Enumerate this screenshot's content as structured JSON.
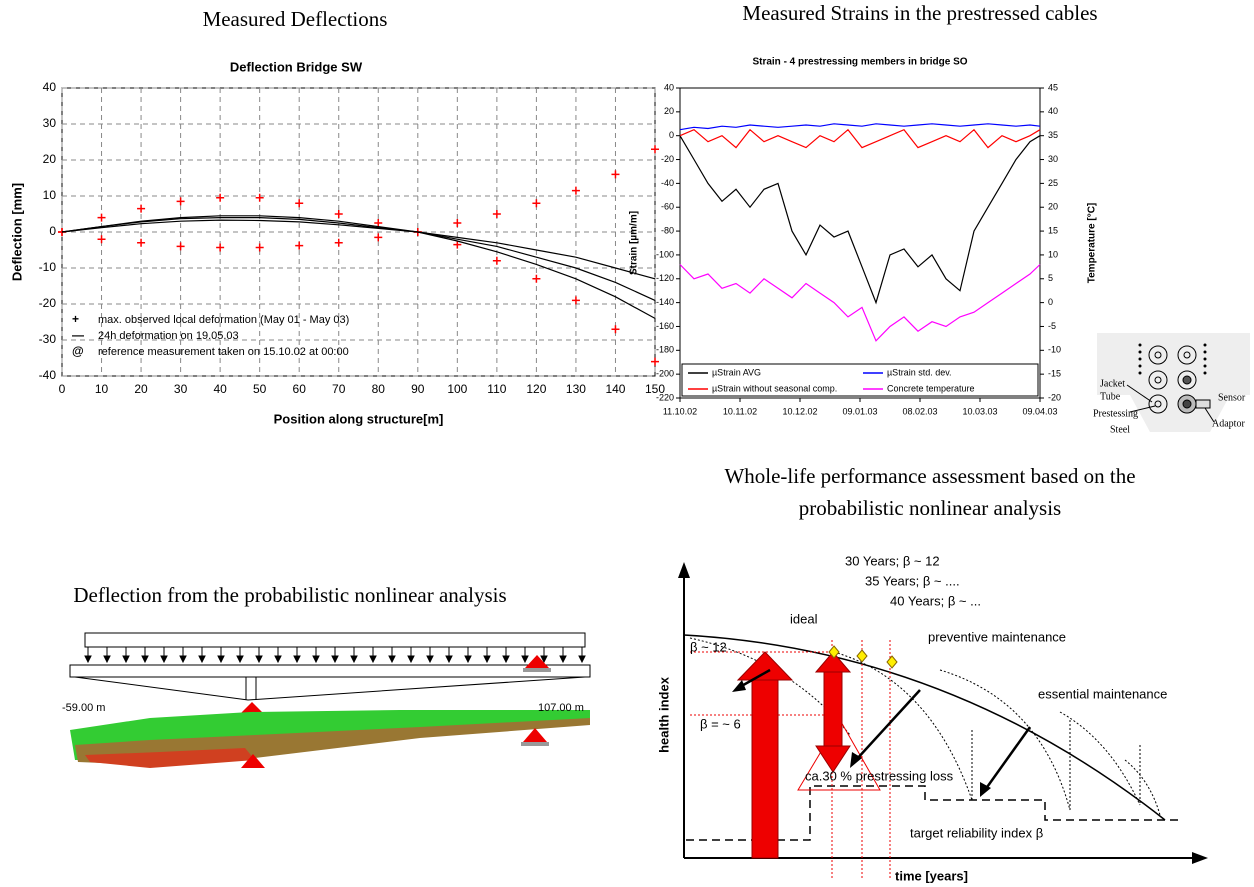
{
  "headings": {
    "deflections": "Measured Deflections",
    "strains": "Measured Strains in the prestressed cables",
    "assessment": [
      "Whole-life performance assessment based on the",
      "probabilistic nonlinear analysis"
    ],
    "analysis": "Deflection from the probabilistic nonlinear analysis"
  },
  "chart_data": [
    {
      "type": "line",
      "title": "Deflection Bridge SW",
      "x_label": "Position along structure[m]",
      "y_label": "Deflection [mm]",
      "x": [
        0,
        10,
        20,
        30,
        40,
        50,
        60,
        70,
        80,
        90,
        100,
        110,
        120,
        130,
        140,
        150
      ],
      "series": [
        {
          "color": "#ff0000",
          "marker": "+",
          "values": [
            0,
            4,
            6.5,
            8.5,
            9.5,
            9.5,
            8,
            5,
            2.5,
            0,
            2.5,
            5,
            8,
            11.5,
            16,
            23
          ]
        },
        {
          "color": "#ff0000",
          "marker": "+",
          "values": [
            0,
            -2,
            -3,
            -4,
            -4.3,
            -4.3,
            -3.8,
            -3,
            -1.5,
            0,
            -3.5,
            -8,
            -13,
            -19,
            -27,
            -36
          ]
        },
        {
          "color": "#000000",
          "values": [
            0,
            1.5,
            3,
            4,
            4.5,
            4.5,
            4,
            3,
            1.5,
            0,
            -1.5,
            -3,
            -5,
            -7,
            -10,
            -13
          ]
        },
        {
          "color": "#000000",
          "values": [
            0,
            1.5,
            2.8,
            3.7,
            4,
            4,
            3.5,
            2.5,
            1.2,
            0,
            -2,
            -4,
            -7,
            -10,
            -14,
            -19
          ]
        },
        {
          "color": "#000000",
          "values": [
            0,
            1.2,
            2.3,
            3,
            3.3,
            3.2,
            2.8,
            2,
            1,
            0,
            -2.5,
            -5.5,
            -9,
            -13,
            -18,
            -24
          ]
        }
      ],
      "legend": [
        {
          "symbol": "+",
          "color": "#ff0000",
          "label": "max. observed local deformation (May 01 - May 03)"
        },
        {
          "symbol": "—",
          "color": "#000000",
          "label": "24h deformation on 19.05.03"
        },
        {
          "symbol": "@",
          "color": "#339966",
          "label": "reference measurement taken on 15.10.02 at 00:00"
        }
      ],
      "xlim": [
        0,
        150
      ],
      "xticks": [
        0,
        10,
        20,
        30,
        40,
        50,
        60,
        70,
        80,
        90,
        100,
        110,
        120,
        130,
        140,
        150
      ],
      "ylim": [
        -40,
        40
      ],
      "yticks": [
        -40,
        -30,
        -20,
        -10,
        0,
        10,
        20,
        30,
        40
      ],
      "grid": true
    },
    {
      "type": "line",
      "title": "Strain - 4 prestressing members in bridge SO",
      "y_label": "Strain [µm/m]",
      "y2_label": "Temperature [°C]",
      "x": [
        "11.10.02",
        "18.10.02",
        "25.10.02",
        "01.11.02",
        "08.11.02",
        "15.11.02",
        "22.11.02",
        "29.11.02",
        "06.12.02",
        "13.12.02",
        "20.12.02",
        "27.12.02",
        "03.01.03",
        "10.01.03",
        "17.01.03",
        "24.01.03",
        "31.01.03",
        "07.02.03",
        "14.02.03",
        "21.02.03",
        "28.02.03",
        "07.03.03",
        "14.03.03",
        "21.03.03",
        "28.03.03",
        "04.04.03",
        "09.04.03"
      ],
      "series": [
        {
          "name": "µStrain AVG",
          "color": "#000000",
          "values": [
            0,
            -20,
            -40,
            -55,
            -45,
            -60,
            -45,
            -40,
            -80,
            -100,
            -75,
            -85,
            -80,
            -110,
            -140,
            -100,
            -95,
            -110,
            -100,
            -120,
            -130,
            -80,
            -60,
            -40,
            -20,
            -5,
            0
          ]
        },
        {
          "name": "µStrain std. dev.",
          "color": "#0000ff",
          "values": [
            5,
            7,
            6,
            8,
            7,
            9,
            8,
            7,
            8,
            9,
            8,
            10,
            9,
            8,
            10,
            9,
            8,
            9,
            10,
            9,
            8,
            9,
            10,
            9,
            8,
            9,
            8
          ]
        },
        {
          "name": "µStrain without seasonal comp.",
          "color": "#ff0000",
          "values": [
            0,
            5,
            -5,
            0,
            -10,
            5,
            -5,
            0,
            -5,
            -10,
            0,
            -5,
            5,
            -10,
            -5,
            0,
            5,
            -10,
            -5,
            0,
            -5,
            5,
            -10,
            0,
            -5,
            0,
            5
          ]
        },
        {
          "name": "Concrete temperature",
          "color": "#ff00ff",
          "axis": "y2",
          "values": [
            8,
            5,
            6,
            3,
            4,
            2,
            5,
            3,
            1,
            4,
            2,
            0,
            -3,
            -1,
            -8,
            -5,
            -3,
            -6,
            -4,
            -5,
            -3,
            -2,
            0,
            2,
            4,
            6,
            8
          ]
        }
      ],
      "xlim": [
        "11.10.02",
        "09.04.03"
      ],
      "xticks": [
        "11.10.02",
        "10.11.02",
        "10.12.02",
        "09.01.03",
        "08.02.03",
        "10.03.03",
        "09.04.03"
      ],
      "ylim": [
        -220,
        40
      ],
      "yticks": [
        -220,
        -200,
        -180,
        -160,
        -140,
        -120,
        -100,
        -80,
        -60,
        -40,
        -20,
        0,
        20,
        40
      ],
      "y2lim": [
        -20,
        45
      ],
      "y2ticks": [
        -20,
        -15,
        -10,
        -5,
        0,
        5,
        10,
        15,
        20,
        25,
        30,
        35,
        40,
        45
      ],
      "grid": false
    }
  ],
  "cable_section": {
    "jacket_tube": [
      "Jacket",
      "Tube"
    ],
    "prestressing_steel": [
      "Prestessing",
      "Steel"
    ],
    "sensor": "Sensor",
    "adaptor": "Adaptor"
  },
  "fe_model": {
    "left": "-59.00 m",
    "right": "107.00 m"
  },
  "assessment_diagram": {
    "years_30": "30 Years; β ~ 12",
    "years_35": "35 Years; β ~ ....",
    "years_40": "40 Years; β ~ ...",
    "ideal": "ideal",
    "beta_start": "β ~ 12",
    "preventive": "preventive maintenance",
    "beta_6": "β = ~ 6",
    "essential": "essential maintenance",
    "loss": "ca.30 % prestressing loss",
    "target": "target reliability index β",
    "y_label": "health index",
    "x_label": "time [years]"
  }
}
